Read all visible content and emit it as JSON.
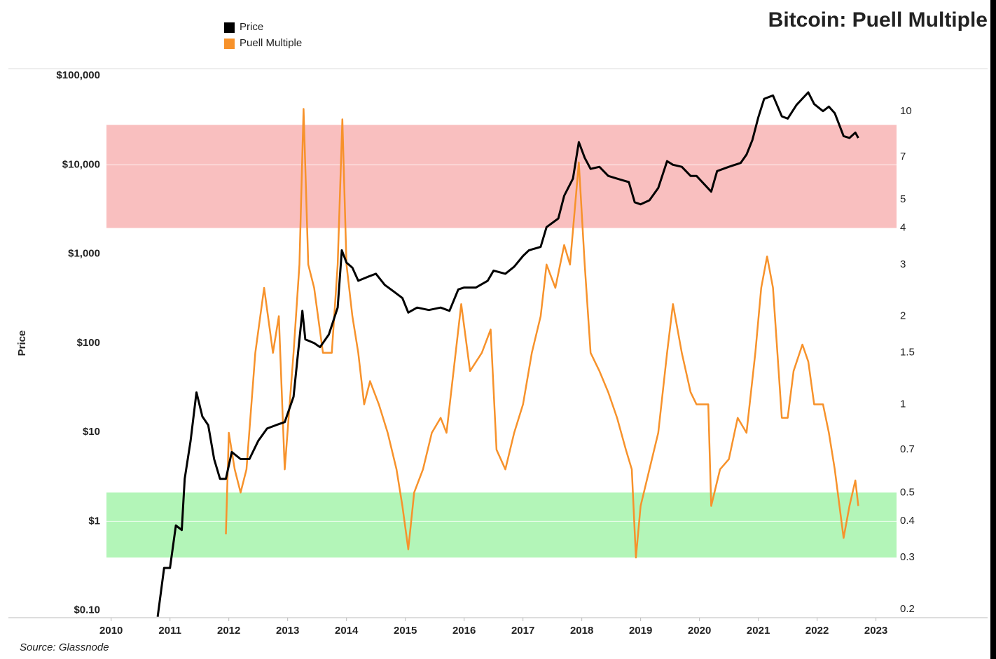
{
  "chart_data": {
    "type": "line",
    "title": "Bitcoin: Puell Multiple",
    "y_label": "Price",
    "source": "Source: Glassnode",
    "ylog": true,
    "y2log": true,
    "grid": true,
    "legend_position": "top",
    "xlim": [
      2009.92,
      2023.35
    ],
    "xticks": [
      2010,
      2011,
      2012,
      2013,
      2014,
      2015,
      2016,
      2017,
      2018,
      2019,
      2020,
      2021,
      2022,
      2023
    ],
    "ylim": [
      0.083,
      120000
    ],
    "yticks": [
      {
        "value": 0.1,
        "label": "$0.10"
      },
      {
        "value": 1,
        "label": "$1"
      },
      {
        "value": 10,
        "label": "$10"
      },
      {
        "value": 100,
        "label": "$100"
      },
      {
        "value": 1000,
        "label": "$1,000"
      },
      {
        "value": 10000,
        "label": "$10,000"
      },
      {
        "value": 100000,
        "label": "$100,000"
      }
    ],
    "y2lim": [
      0.187,
      14
    ],
    "y2ticks": [
      0.2,
      0.3,
      0.4,
      0.5,
      0.7,
      1,
      1.5,
      2,
      3,
      4,
      5,
      7,
      10
    ],
    "bands": [
      {
        "from": 4,
        "to": 9,
        "color": "#f9bfbf"
      },
      {
        "from": 0.3,
        "to": 0.5,
        "color": "#b3f5b8"
      }
    ],
    "series": [
      {
        "name": "Price",
        "color": "#000000",
        "axis": "y",
        "x": [
          2010.79,
          2010.9,
          2011.0,
          2011.1,
          2011.2,
          2011.25,
          2011.35,
          2011.45,
          2011.55,
          2011.65,
          2011.75,
          2011.85,
          2011.95,
          2012.05,
          2012.2,
          2012.35,
          2012.5,
          2012.65,
          2012.8,
          2012.95,
          2013.1,
          2013.25,
          2013.3,
          2013.45,
          2013.55,
          2013.7,
          2013.85,
          2013.92,
          2014.0,
          2014.1,
          2014.2,
          2014.35,
          2014.5,
          2014.65,
          2014.8,
          2014.95,
          2015.05,
          2015.2,
          2015.4,
          2015.6,
          2015.75,
          2015.9,
          2016.0,
          2016.2,
          2016.4,
          2016.5,
          2016.7,
          2016.85,
          2017.0,
          2017.1,
          2017.3,
          2017.4,
          2017.6,
          2017.7,
          2017.85,
          2017.95,
          2018.05,
          2018.15,
          2018.3,
          2018.45,
          2018.6,
          2018.8,
          2018.9,
          2019.0,
          2019.15,
          2019.3,
          2019.45,
          2019.55,
          2019.7,
          2019.85,
          2019.95,
          2020.2,
          2020.3,
          2020.5,
          2020.7,
          2020.8,
          2020.9,
          2021.0,
          2021.1,
          2021.25,
          2021.4,
          2021.5,
          2021.65,
          2021.85,
          2021.95,
          2022.1,
          2022.2,
          2022.3,
          2022.45,
          2022.55,
          2022.65,
          2022.7
        ],
        "values": [
          0.085,
          0.3,
          0.3,
          0.9,
          0.8,
          3,
          8,
          28,
          15,
          12,
          5,
          3,
          3,
          6,
          5,
          5,
          8,
          11,
          12,
          13,
          25,
          230,
          110,
          100,
          90,
          125,
          250,
          1100,
          800,
          700,
          500,
          550,
          600,
          450,
          380,
          320,
          220,
          250,
          235,
          250,
          230,
          400,
          420,
          420,
          500,
          650,
          600,
          720,
          950,
          1100,
          1200,
          2000,
          2500,
          4500,
          7000,
          18000,
          12000,
          9000,
          9500,
          7500,
          7000,
          6400,
          3800,
          3600,
          4000,
          5500,
          11000,
          10000,
          9500,
          7500,
          7500,
          5000,
          8500,
          9500,
          10500,
          13000,
          19000,
          34000,
          55000,
          60000,
          35000,
          33000,
          47000,
          65000,
          48000,
          40000,
          45000,
          38000,
          21000,
          20000,
          23000,
          20000
        ]
      },
      {
        "name": "Puell Multiple",
        "color": "#f7922b",
        "axis": "y2",
        "x": [
          2011.95,
          2012.0,
          2012.1,
          2012.2,
          2012.3,
          2012.45,
          2012.6,
          2012.75,
          2012.85,
          2012.95,
          2013.1,
          2013.2,
          2013.27,
          2013.35,
          2013.45,
          2013.6,
          2013.75,
          2013.85,
          2013.93,
          2014.0,
          2014.1,
          2014.2,
          2014.3,
          2014.4,
          2014.55,
          2014.7,
          2014.85,
          2014.95,
          2015.05,
          2015.15,
          2015.3,
          2015.45,
          2015.6,
          2015.7,
          2015.8,
          2015.95,
          2016.1,
          2016.3,
          2016.45,
          2016.55,
          2016.7,
          2016.85,
          2017.0,
          2017.15,
          2017.3,
          2017.4,
          2017.55,
          2017.7,
          2017.8,
          2017.95,
          2018.05,
          2018.15,
          2018.3,
          2018.45,
          2018.6,
          2018.75,
          2018.85,
          2018.92,
          2019.0,
          2019.15,
          2019.3,
          2019.45,
          2019.55,
          2019.7,
          2019.85,
          2019.95,
          2020.15,
          2020.2,
          2020.35,
          2020.5,
          2020.65,
          2020.8,
          2020.95,
          2021.05,
          2021.15,
          2021.25,
          2021.4,
          2021.5,
          2021.6,
          2021.75,
          2021.85,
          2021.95,
          2022.1,
          2022.2,
          2022.3,
          2022.45,
          2022.55,
          2022.65,
          2022.7
        ],
        "values": [
          0.36,
          0.8,
          0.6,
          0.5,
          0.6,
          1.5,
          2.5,
          1.5,
          2.0,
          0.6,
          1.5,
          3,
          10.2,
          3,
          2.5,
          1.5,
          1.5,
          3,
          9.4,
          3,
          2,
          1.5,
          1,
          1.2,
          1,
          0.8,
          0.6,
          0.45,
          0.32,
          0.5,
          0.6,
          0.8,
          0.9,
          0.8,
          1.2,
          2.2,
          1.3,
          1.5,
          1.8,
          0.7,
          0.6,
          0.8,
          1.0,
          1.5,
          2,
          3,
          2.5,
          3.5,
          3,
          6.7,
          3,
          1.5,
          1.3,
          1.1,
          0.9,
          0.7,
          0.6,
          0.3,
          0.45,
          0.6,
          0.8,
          1.5,
          2.2,
          1.5,
          1.1,
          1.0,
          1.0,
          0.45,
          0.6,
          0.65,
          0.9,
          0.8,
          1.5,
          2.5,
          3.2,
          2.5,
          0.9,
          0.9,
          1.3,
          1.6,
          1.4,
          1.0,
          1.0,
          0.8,
          0.6,
          0.35,
          0.45,
          0.55,
          0.45
        ]
      }
    ]
  }
}
